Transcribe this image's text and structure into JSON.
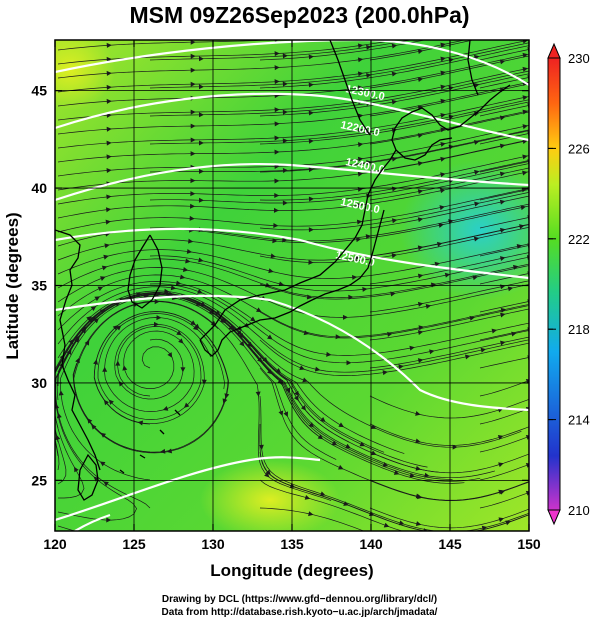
{
  "title": "MSM 09Z26Sep2023 (200.0hPa)",
  "map": {
    "xlabel": "Longitude (degrees)",
    "ylabel": "Latitude  (degrees)",
    "lon_ticks": [
      "120",
      "125",
      "130",
      "135",
      "140",
      "145",
      "150"
    ],
    "lat_ticks": [
      "25",
      "30",
      "35",
      "40",
      "45"
    ],
    "lon_range": [
      120,
      150
    ],
    "lat_range": [
      22.4,
      47.6
    ],
    "grid": true,
    "contour_labels": [
      "12300.0",
      "12200.0",
      "12400.0",
      "12500.0",
      "12500.0"
    ],
    "cyclone_center": {
      "lon": 126.2,
      "lat": 31.1
    }
  },
  "colorbar": {
    "labels": [
      "230",
      "226",
      "222",
      "218",
      "214",
      "210"
    ],
    "range": [
      210,
      230
    ],
    "colors": [
      "#cc33cc",
      "#2233cc",
      "#11aaee",
      "#22cc88",
      "#55dd22",
      "#bbee22",
      "#ffcc11",
      "#ff6611",
      "#ee2222"
    ]
  },
  "credits": {
    "line1": "Drawing by DCL (https://www.gfd−dennou.org/library/dcl/)",
    "line2": "Data from http://database.rish.kyoto−u.ac.jp/arch/jmadata/"
  }
}
